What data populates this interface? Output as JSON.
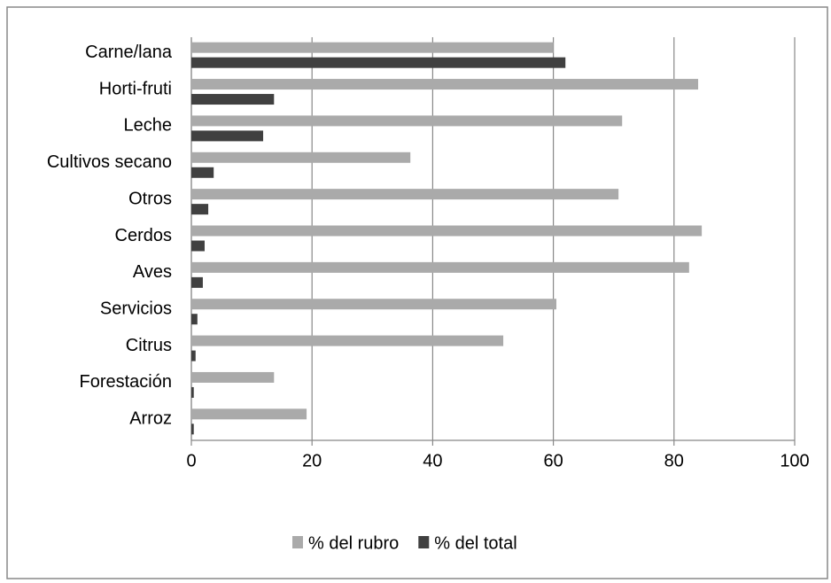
{
  "chart_data": {
    "type": "hbar",
    "categories": [
      "Carne/lana",
      "Horti-fruti",
      "Leche",
      "Cultivos secano",
      "Otros",
      "Cerdos",
      "Aves",
      "Servicios",
      "Citrus",
      "Forestación",
      "Arroz"
    ],
    "series": [
      {
        "name": "% del rubro",
        "color": "#aaaaaa",
        "values": [
          60,
          84,
          71.4,
          36.3,
          70.8,
          84.6,
          82.5,
          60.5,
          51.7,
          13.7,
          19.1
        ]
      },
      {
        "name": "% del total",
        "color": "#404040",
        "values": [
          62,
          13.7,
          11.9,
          3.7,
          2.8,
          2.2,
          1.9,
          1,
          0.7,
          0.4,
          0.4
        ]
      }
    ],
    "xlim": [
      0,
      100
    ],
    "xticks": [
      0,
      20,
      40,
      60,
      80,
      100
    ],
    "grid": true,
    "legend": "bottom"
  }
}
